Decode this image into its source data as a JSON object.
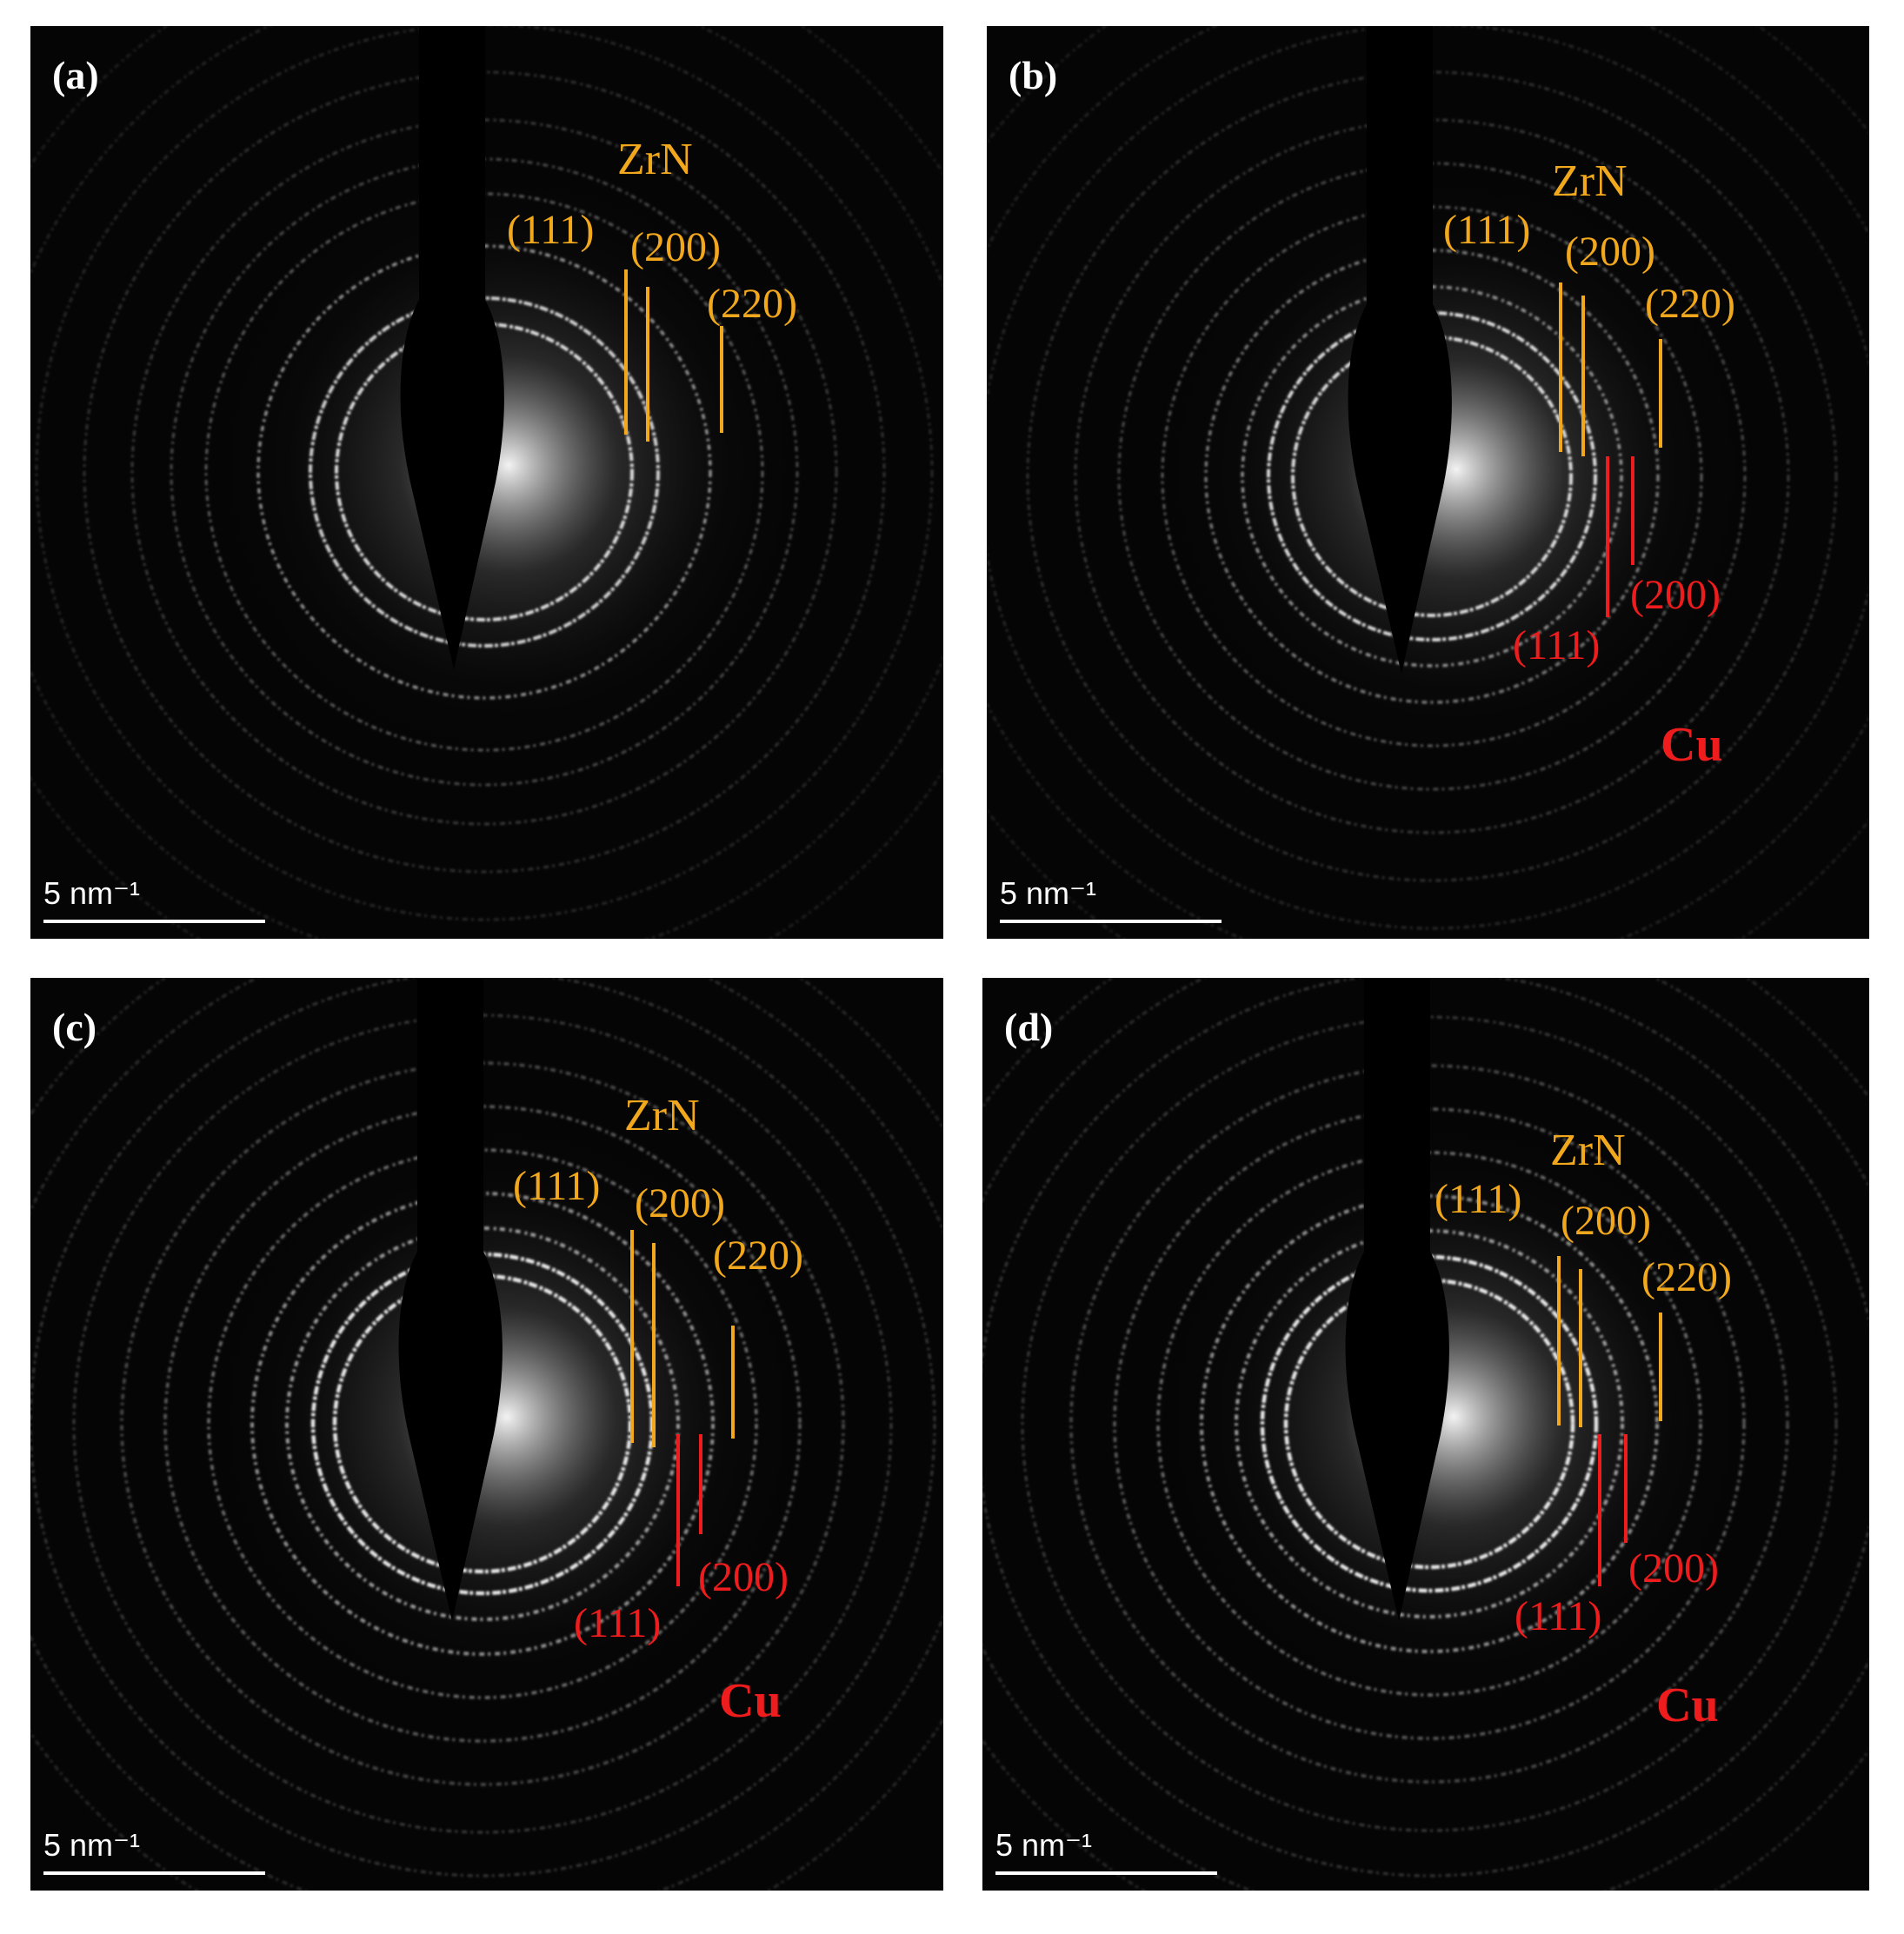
{
  "colors": {
    "zrn": "#f2a81c",
    "cu": "#ee1c1c",
    "panel_label": "#ffffff",
    "scale": "#ffffff",
    "background": "#050505"
  },
  "panels": [
    {
      "id": "a",
      "label": "(a)",
      "zrn": {
        "title": "ZrN",
        "indices": [
          "(111)",
          "(200)",
          "(220)"
        ]
      },
      "cu": null,
      "scale_bar": "5 nm⁻¹"
    },
    {
      "id": "b",
      "label": "(b)",
      "zrn": {
        "title": "ZrN",
        "indices": [
          "(111)",
          "(200)",
          "(220)"
        ]
      },
      "cu": {
        "title": "Cu",
        "indices": [
          "(111)",
          "(200)"
        ]
      },
      "scale_bar": "5 nm⁻¹"
    },
    {
      "id": "c",
      "label": "(c)",
      "zrn": {
        "title": "ZrN",
        "indices": [
          "(111)",
          "(200)",
          "(220)"
        ]
      },
      "cu": {
        "title": "Cu",
        "indices": [
          "(111)",
          "(200)"
        ]
      },
      "scale_bar": "5 nm⁻¹"
    },
    {
      "id": "d",
      "label": "(d)",
      "zrn": {
        "title": "ZrN",
        "indices": [
          "(111)",
          "(200)",
          "(220)"
        ]
      },
      "cu": {
        "title": "Cu",
        "indices": [
          "(111)",
          "(200)"
        ]
      },
      "scale_bar": "5 nm⁻¹"
    }
  ]
}
